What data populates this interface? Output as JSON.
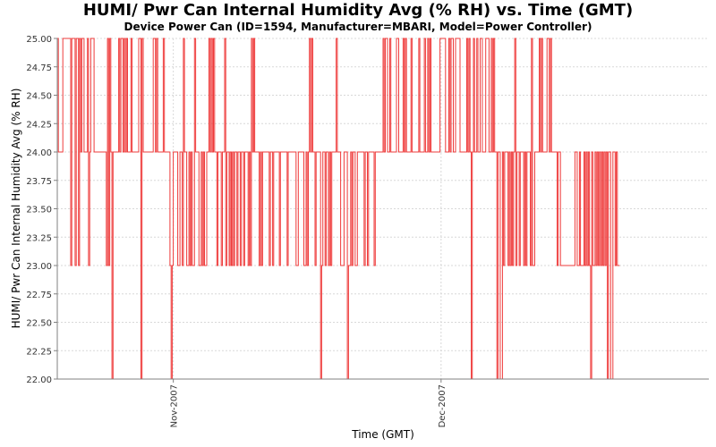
{
  "chart_data": {
    "type": "line",
    "title": "HUMI/ Pwr Can Internal Humidity Avg (% RH) vs. Time (GMT)",
    "subtitle": "Device Power Can (ID=1594, Manufacturer=MBARI, Model=Power Controller)",
    "xlabel": "Time (GMT)",
    "ylabel": "HUMI/ Pwr Can Internal Humidity Avg (% RH)",
    "x_tick_labels": [
      "Nov-2007",
      "Dec-2007"
    ],
    "x_range": [
      "2007-10-19",
      "2007-12-31"
    ],
    "ylim": [
      22.0,
      25.0
    ],
    "y_ticks": [
      "22.00",
      "22.25",
      "22.50",
      "22.75",
      "23.00",
      "23.25",
      "23.50",
      "23.75",
      "24.00",
      "24.25",
      "24.50",
      "24.75",
      "25.00"
    ],
    "grid": true,
    "legend": "none",
    "series_color": "#ee3b3b",
    "series": [
      {
        "sampling": "hourly",
        "x_start": "2007-10-19",
        "x_end": "2007-12-21",
        "value_levels": [
          22,
          23,
          24,
          25
        ],
        "dominant_level": 24
      }
    ]
  }
}
